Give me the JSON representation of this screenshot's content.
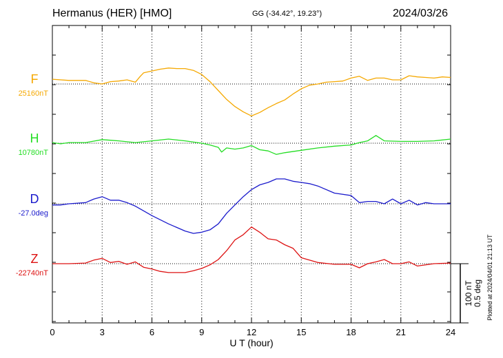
{
  "header": {
    "title": "Hermanus (HER)  [HMO]",
    "coordinates": "GG (-34.42°,  19.23°)",
    "date": "2024/03/26"
  },
  "side_note": "Plotted at 2024/04/01 21:13 UT",
  "scale_labels": [
    "100 nT",
    "0.5 deg"
  ],
  "chart_data": {
    "type": "line",
    "title": "Hermanus (HER)  [HMO]",
    "xlabel": "U T (hour)",
    "xlim": [
      0,
      24
    ],
    "xticks": [
      0,
      3,
      6,
      9,
      12,
      15,
      18,
      21,
      24
    ],
    "grid": true,
    "scale": {
      "nT_per_bar": 100,
      "deg_per_bar": 0.5
    },
    "series": [
      {
        "name": "F",
        "baseline_label": "25160nT",
        "baseline": 25160,
        "unit": "nT",
        "color": "#f5a800",
        "x": [
          0,
          1,
          2,
          2.5,
          3,
          3.5,
          4,
          4.5,
          5,
          5.3,
          5.5,
          6,
          6.5,
          7,
          7.5,
          8,
          8.5,
          9,
          9.5,
          10,
          10.5,
          11,
          11.5,
          12,
          12.5,
          13,
          13.5,
          14,
          14.5,
          15,
          15.5,
          16,
          16.5,
          17,
          17.5,
          18,
          18.5,
          19,
          19.5,
          20,
          20.5,
          21,
          21.5,
          22,
          22.5,
          23,
          23.5,
          24
        ],
        "values": [
          25168,
          25166,
          25166,
          25162,
          25160,
          25164,
          25165,
          25167,
          25163,
          25173,
          25179,
          25182,
          25185,
          25187,
          25186,
          25186,
          25183,
          25176,
          25164,
          25149,
          25134,
          25122,
          25113,
          25106,
          25112,
          25120,
          25127,
          25133,
          25143,
          25152,
          25158,
          25160,
          25163,
          25164,
          25165,
          25170,
          25173,
          25166,
          25170,
          25170,
          25167,
          25167,
          25174,
          25172,
          25171,
          25170,
          25172,
          25171
        ]
      },
      {
        "name": "H",
        "baseline_label": "10780nT",
        "baseline": 10780,
        "unit": "nT",
        "color": "#22dd22",
        "x": [
          0,
          0.5,
          1,
          2,
          3,
          3.5,
          4,
          5,
          6,
          7,
          8,
          9,
          9.5,
          10,
          10.2,
          10.5,
          11,
          11.5,
          12,
          12.5,
          13,
          13.5,
          14,
          15,
          16,
          17,
          18,
          18.5,
          19,
          19.5,
          20,
          21,
          22,
          23,
          24
        ],
        "values": [
          10781,
          10779,
          10781,
          10781,
          10786,
          10785,
          10784,
          10781,
          10784,
          10787,
          10784,
          10780,
          10777,
          10773,
          10765,
          10772,
          10770,
          10772,
          10776,
          10769,
          10767,
          10761,
          10764,
          10768,
          10772,
          10775,
          10777,
          10781,
          10784,
          10793,
          10784,
          10783,
          10783,
          10784,
          10787
        ]
      },
      {
        "name": "D",
        "baseline_label": "-27.0deg",
        "baseline": -27.0,
        "unit": "deg",
        "color": "#1a1acc",
        "x": [
          0,
          0.5,
          1,
          2,
          2.5,
          3,
          3.5,
          4,
          4.5,
          5,
          5.5,
          6,
          7,
          8,
          8.5,
          9,
          9.5,
          10,
          10.5,
          11,
          11.5,
          12,
          12.5,
          13,
          13.5,
          14,
          14.5,
          15,
          15.5,
          16,
          17,
          18,
          18.5,
          19,
          19.5,
          20,
          20.5,
          21,
          21.5,
          22,
          22.5,
          23,
          23.5,
          24
        ],
        "values": [
          -27.01,
          -27.01,
          -27.0,
          -26.99,
          -26.96,
          -26.94,
          -26.97,
          -26.97,
          -26.99,
          -27.02,
          -27.06,
          -27.1,
          -27.17,
          -27.23,
          -27.25,
          -27.24,
          -27.22,
          -27.17,
          -27.08,
          -27.01,
          -26.94,
          -26.88,
          -26.84,
          -26.82,
          -26.79,
          -26.79,
          -26.81,
          -26.82,
          -26.83,
          -26.85,
          -26.91,
          -26.93,
          -26.99,
          -26.98,
          -26.98,
          -27.0,
          -26.96,
          -27.0,
          -26.97,
          -27.01,
          -26.99,
          -27.0,
          -27.0,
          -27.0
        ]
      },
      {
        "name": "Z",
        "baseline_label": "-22740nT",
        "baseline": -22740,
        "unit": "nT",
        "color": "#dd1111",
        "x": [
          0,
          1,
          2,
          2.5,
          3,
          3.5,
          4,
          4.5,
          5,
          5.5,
          6,
          6.5,
          7,
          8,
          8.5,
          9,
          9.5,
          10,
          10.5,
          11,
          11.5,
          12,
          12.5,
          13,
          13.5,
          14,
          14.5,
          15,
          16,
          17,
          18,
          18.5,
          19,
          19.5,
          20,
          20.5,
          21,
          21.5,
          22,
          23,
          24
        ],
        "values": [
          -22740,
          -22740,
          -22739,
          -22734,
          -22731,
          -22738,
          -22736,
          -22741,
          -22737,
          -22746,
          -22749,
          -22753,
          -22755,
          -22755,
          -22752,
          -22748,
          -22742,
          -22733,
          -22718,
          -22700,
          -22691,
          -22678,
          -22687,
          -22698,
          -22700,
          -22708,
          -22714,
          -22730,
          -22738,
          -22741,
          -22741,
          -22747,
          -22740,
          -22737,
          -22733,
          -22740,
          -22740,
          -22737,
          -22744,
          -22740,
          -22739
        ]
      }
    ]
  }
}
